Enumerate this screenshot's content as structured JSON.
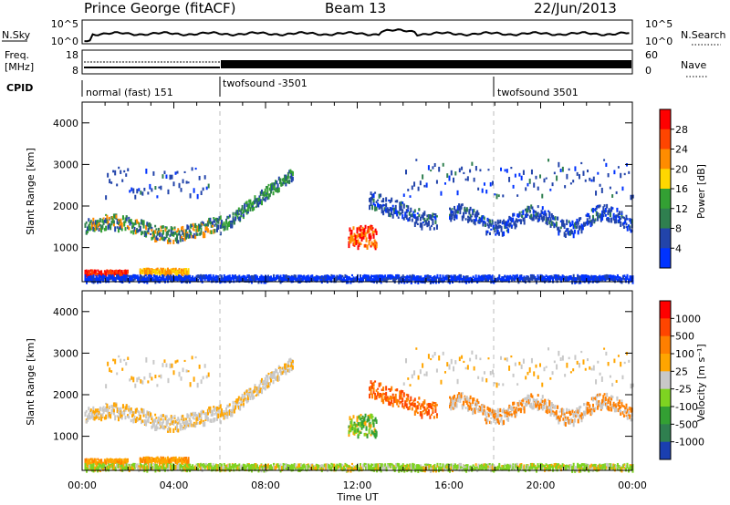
{
  "header": {
    "station": "Prince George (fitACF)",
    "beam": "Beam 13",
    "date": "22/Jun/2013"
  },
  "noise_panel": {
    "left_label": "N.Sky",
    "right_label": "N.Search",
    "left_ticks": [
      "10^5",
      "10^0"
    ],
    "right_ticks": [
      "10^5",
      "10^0"
    ]
  },
  "freq_panel": {
    "left_label_1": "Freq.",
    "left_label_2": "[MHz]",
    "left_ticks": [
      "18",
      "8"
    ],
    "right_label": "Nave",
    "right_ticks": [
      "60",
      "0"
    ]
  },
  "cpid": {
    "label": "CPID",
    "segments": [
      {
        "name": "normal (fast) 151",
        "start_hour": 0
      },
      {
        "name": "twofsound -3501",
        "start_hour": 6
      },
      {
        "name": "twofsound 3501",
        "start_hour": 18
      }
    ]
  },
  "chart_data": [
    {
      "type": "heatmap",
      "parameter": "Power",
      "ylabel": "Slant Range [km]",
      "xlabel": "",
      "yticks": [
        1000,
        2000,
        3000,
        4000
      ],
      "ylim": [
        180,
        4500
      ],
      "colorbar_label": "Power [dB]",
      "colorbar_ticks": [
        "28",
        "24",
        "20",
        "16",
        "12",
        "8",
        "4"
      ],
      "colors": [
        "#0033ff",
        "#2244aa",
        "#2f7f4f",
        "#33a033",
        "#ffd700",
        "#ff8c00",
        "#ff4500",
        "#ff0000"
      ]
    },
    {
      "type": "heatmap",
      "parameter": "Velocity",
      "ylabel": "Slant Range [km]",
      "xlabel": "Time UT",
      "xticks": [
        "00:00",
        "04:00",
        "08:00",
        "12:00",
        "16:00",
        "20:00",
        "00:00"
      ],
      "yticks": [
        1000,
        2000,
        3000,
        4000
      ],
      "ylim": [
        180,
        4500
      ],
      "colorbar_label": "Velocity [m s⁻¹]",
      "colorbar_ticks": [
        "1000",
        "500",
        "100",
        "25",
        "-25",
        "-100",
        "-500",
        "-1000"
      ],
      "colors": [
        "#1a3fb0",
        "#2f7f4f",
        "#33a033",
        "#7ed321",
        "#c8c8c8",
        "#ffa500",
        "#ff7f00",
        "#ff4500",
        "#ff0000"
      ]
    }
  ]
}
